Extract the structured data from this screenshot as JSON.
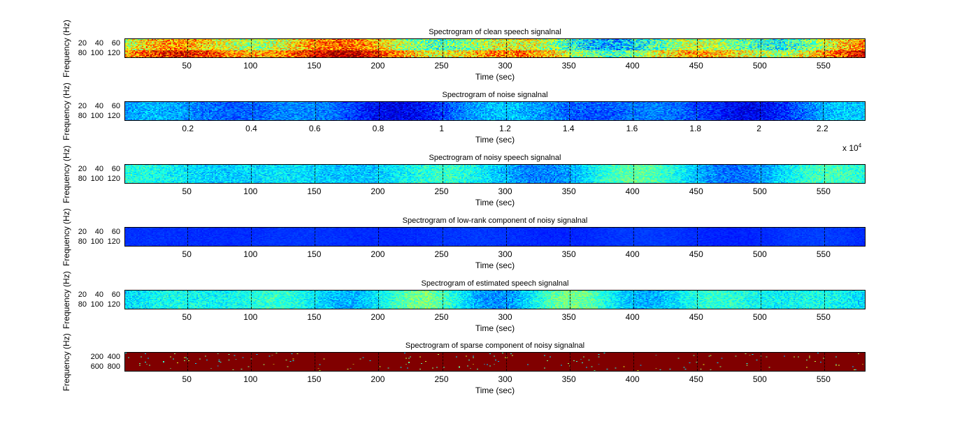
{
  "chart_data": [
    {
      "type": "heatmap",
      "title": "Spectrogram of clean speech signalnal",
      "xlabel": "Time (sec)",
      "ylabel": "Frequency (Hz)",
      "xticks": [
        "50",
        "100",
        "150",
        "200",
        "250",
        "300",
        "350",
        "400",
        "450",
        "500",
        "550"
      ],
      "xtick_values": [
        50,
        100,
        150,
        200,
        250,
        300,
        350,
        400,
        450,
        500,
        550
      ],
      "xlim": [
        1,
        583
      ],
      "yticks": [
        "20",
        "40",
        "60",
        "80",
        "100",
        "120"
      ],
      "colormap": "jet",
      "level": 0.55,
      "var": 0.25
    },
    {
      "type": "heatmap",
      "title": "Spectrogram of noise signalnal",
      "xlabel": "Time (sec)",
      "ylabel": "Frequency (Hz)",
      "xticks": [
        "0.2",
        "0.4",
        "0.6",
        "0.8",
        "1",
        "1.2",
        "1.4",
        "1.6",
        "1.8",
        "2",
        "2.2"
      ],
      "xtick_values": [
        0.2,
        0.4,
        0.6,
        0.8,
        1,
        1.2,
        1.4,
        1.6,
        1.8,
        2,
        2.2
      ],
      "xlim": [
        0,
        2.336
      ],
      "x_multiplier": "x 10",
      "x_multiplier_exp": "4",
      "yticks": [
        "20",
        "40",
        "60",
        "80",
        "100",
        "120"
      ],
      "colormap": "jet",
      "level": 0.22,
      "var": 0.12
    },
    {
      "type": "heatmap",
      "title": "Spectrogram of noisy speech signalnal",
      "xlabel": "Time (sec)",
      "ylabel": "Frequency (Hz)",
      "xticks": [
        "50",
        "100",
        "150",
        "200",
        "250",
        "300",
        "350",
        "400",
        "450",
        "500",
        "550"
      ],
      "xtick_values": [
        50,
        100,
        150,
        200,
        250,
        300,
        350,
        400,
        450,
        500,
        550
      ],
      "xlim": [
        1,
        583
      ],
      "yticks": [
        "20",
        "40",
        "60",
        "80",
        "100",
        "120"
      ],
      "colormap": "jet",
      "level": 0.35,
      "var": 0.12
    },
    {
      "type": "heatmap",
      "title": "Spectrogram of low-rank component of noisy signalnal",
      "xlabel": "Time (sec)",
      "ylabel": "Frequency (Hz)",
      "xticks": [
        "50",
        "100",
        "150",
        "200",
        "250",
        "300",
        "350",
        "400",
        "450",
        "500",
        "550"
      ],
      "xtick_values": [
        50,
        100,
        150,
        200,
        250,
        300,
        350,
        400,
        450,
        500,
        550
      ],
      "xlim": [
        1,
        583
      ],
      "yticks": [
        "20",
        "40",
        "60",
        "80",
        "100",
        "120"
      ],
      "colormap": "jet",
      "level": 0.17,
      "var": 0.03
    },
    {
      "type": "heatmap",
      "title": "Spectrogram of estimated speech signalnal",
      "xlabel": "Time (sec)",
      "ylabel": "Frequency (Hz)",
      "xticks": [
        "50",
        "100",
        "150",
        "200",
        "250",
        "300",
        "350",
        "400",
        "450",
        "500",
        "550"
      ],
      "xtick_values": [
        50,
        100,
        150,
        200,
        250,
        300,
        350,
        400,
        450,
        500,
        550
      ],
      "xlim": [
        1,
        583
      ],
      "yticks": [
        "20",
        "40",
        "60",
        "80",
        "100",
        "120"
      ],
      "colormap": "jet",
      "level": 0.38,
      "var": 0.12
    },
    {
      "type": "heatmap",
      "title": "Spectrogram of sparse component of noisy signalnal",
      "xlabel": "Time (sec)",
      "ylabel": "Frequency (Hz)",
      "xticks": [
        "50",
        "100",
        "150",
        "200",
        "250",
        "300",
        "350",
        "400",
        "450",
        "500",
        "550"
      ],
      "xtick_values": [
        50,
        100,
        150,
        200,
        250,
        300,
        350,
        400,
        450,
        500,
        550
      ],
      "xlim": [
        1,
        583
      ],
      "yticks": [
        "200",
        "400",
        "600",
        "800"
      ],
      "colormap": "jet",
      "level": 1.0,
      "var": 0,
      "sparse": true
    }
  ]
}
